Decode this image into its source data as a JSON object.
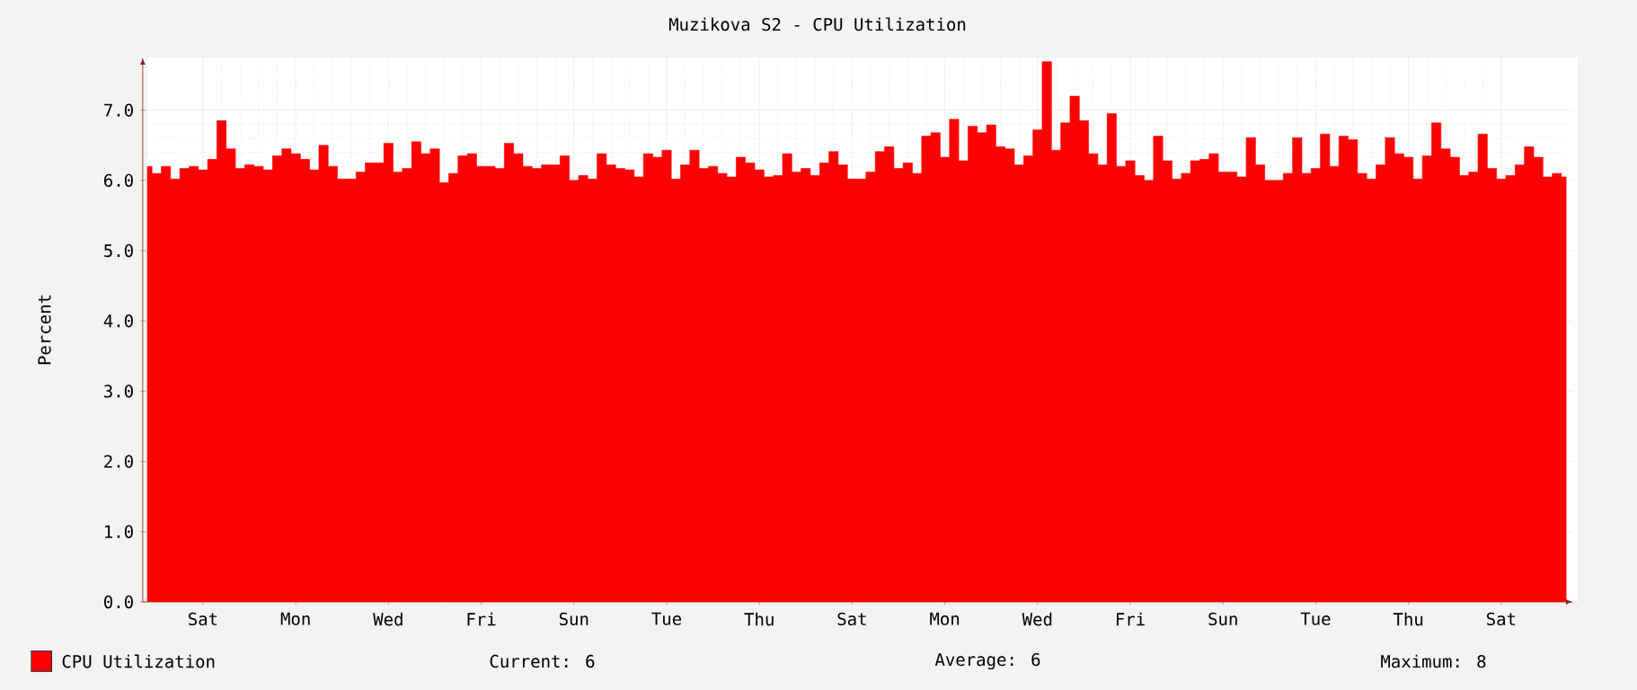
{
  "chart_data": {
    "type": "area",
    "title": "Muzikova S2 - CPU Utilization",
    "ylabel": "Percent",
    "ylim": [
      0,
      7.75
    ],
    "yticks": [
      {
        "value": 0,
        "label": "0.0"
      },
      {
        "value": 1,
        "label": "1.0"
      },
      {
        "value": 2,
        "label": "2.0"
      },
      {
        "value": 3,
        "label": "3.0"
      },
      {
        "value": 4,
        "label": "4.0"
      },
      {
        "value": 5,
        "label": "5.0"
      },
      {
        "value": 6,
        "label": "6.0"
      },
      {
        "value": 7,
        "label": "7.0"
      }
    ],
    "categories": [
      null,
      null,
      null,
      null,
      null,
      null,
      "Sat",
      null,
      null,
      null,
      null,
      null,
      null,
      null,
      null,
      null,
      "Mon",
      null,
      null,
      null,
      null,
      null,
      null,
      null,
      null,
      null,
      "Wed",
      null,
      null,
      null,
      null,
      null,
      null,
      null,
      null,
      null,
      "Fri",
      null,
      null,
      null,
      null,
      null,
      null,
      null,
      null,
      null,
      "Sun",
      null,
      null,
      null,
      null,
      null,
      null,
      null,
      null,
      null,
      "Tue",
      null,
      null,
      null,
      null,
      null,
      null,
      null,
      null,
      null,
      "Thu",
      null,
      null,
      null,
      null,
      null,
      null,
      null,
      null,
      null,
      "Sat",
      null,
      null,
      null,
      null,
      null,
      null,
      null,
      null,
      null,
      "Mon",
      null,
      null,
      null,
      null,
      null,
      null,
      null,
      null,
      null,
      "Wed",
      null,
      null,
      null,
      null,
      null,
      null,
      null,
      null,
      null,
      "Fri",
      null,
      null,
      null,
      null,
      null,
      null,
      null,
      null,
      null,
      "Sun",
      null,
      null,
      null,
      null,
      null,
      null,
      null,
      null,
      null,
      "Tue",
      null,
      null,
      null,
      null,
      null,
      null,
      null,
      null,
      null,
      "Thu",
      null,
      null,
      null,
      null,
      null,
      null,
      null,
      null,
      null,
      "Sat",
      null,
      null,
      null,
      null,
      null,
      null,
      null
    ],
    "series": [
      {
        "name": "CPU Utilization",
        "color": "#ff0000",
        "values": [
          6.2,
          6.1,
          6.2,
          6.02,
          6.17,
          6.2,
          6.15,
          6.3,
          6.85,
          6.45,
          6.17,
          6.22,
          6.2,
          6.15,
          6.35,
          6.45,
          6.38,
          6.3,
          6.15,
          6.5,
          6.2,
          6.02,
          6.02,
          6.12,
          6.25,
          6.25,
          6.53,
          6.12,
          6.17,
          6.55,
          6.38,
          6.45,
          5.97,
          6.1,
          6.35,
          6.38,
          6.2,
          6.2,
          6.17,
          6.53,
          6.38,
          6.2,
          6.17,
          6.22,
          6.22,
          6.35,
          6.0,
          6.07,
          6.02,
          6.38,
          6.22,
          6.17,
          6.15,
          6.05,
          6.38,
          6.33,
          6.43,
          6.02,
          6.22,
          6.43,
          6.17,
          6.2,
          6.1,
          6.05,
          6.33,
          6.25,
          6.15,
          6.05,
          6.07,
          6.38,
          6.12,
          6.17,
          6.07,
          6.25,
          6.41,
          6.22,
          6.02,
          6.02,
          6.12,
          6.41,
          6.48,
          6.17,
          6.25,
          6.1,
          6.63,
          6.68,
          6.33,
          6.87,
          6.28,
          6.77,
          6.68,
          6.79,
          6.48,
          6.45,
          6.22,
          6.35,
          6.72,
          7.69,
          6.43,
          6.82,
          7.2,
          6.85,
          6.38,
          6.22,
          6.95,
          6.2,
          6.28,
          6.07,
          6.0,
          6.63,
          6.28,
          6.02,
          6.1,
          6.28,
          6.3,
          6.38,
          6.12,
          6.12,
          6.05,
          6.61,
          6.22,
          6.0,
          6.0,
          6.1,
          6.61,
          6.1,
          6.17,
          6.66,
          6.2,
          6.63,
          6.58,
          6.1,
          6.02,
          6.22,
          6.61,
          6.38,
          6.33,
          6.02,
          6.35,
          6.82,
          6.45,
          6.33,
          6.07,
          6.12,
          6.66,
          6.17,
          6.02,
          6.07,
          6.22,
          6.48,
          6.33,
          6.05,
          6.1,
          6.05
        ]
      }
    ],
    "grid": true,
    "legend": "bottom",
    "annotations": [
      "Current: 6",
      "Average: 6",
      "Maximum: 8"
    ]
  }
}
